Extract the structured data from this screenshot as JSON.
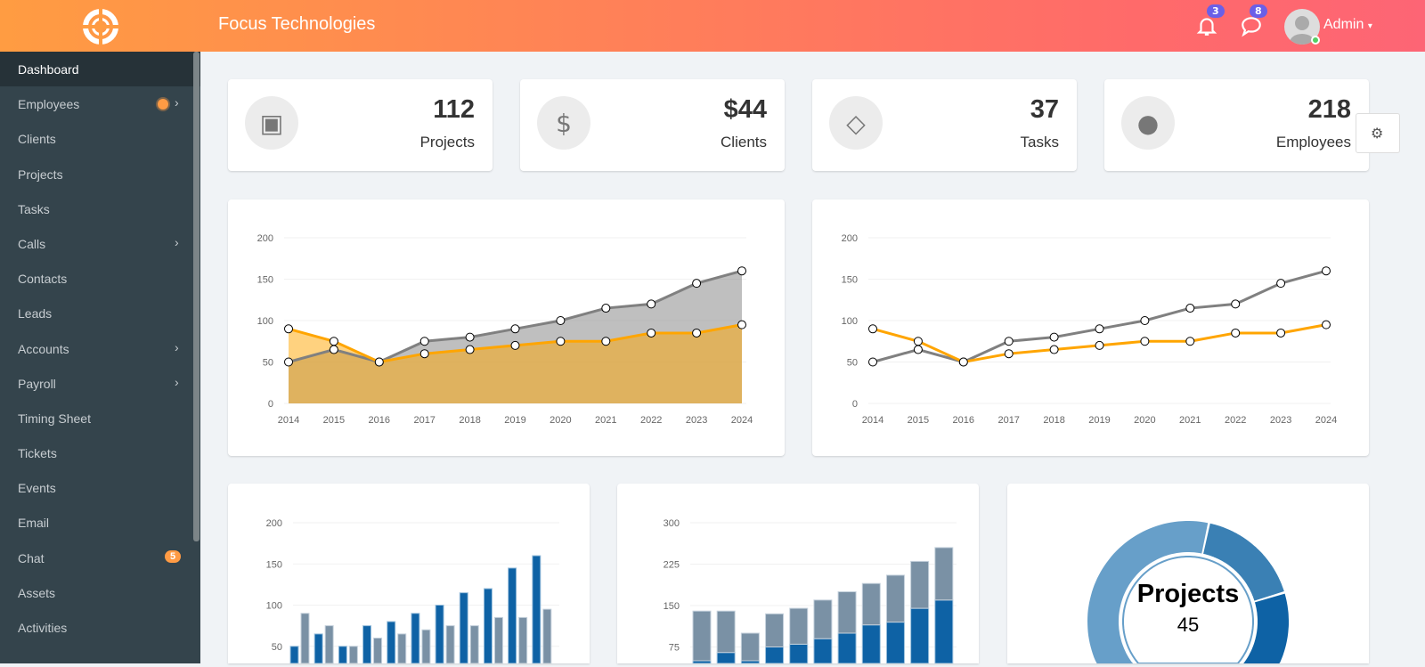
{
  "header": {
    "title": "Focus Technologies",
    "notifications_count": "3",
    "messages_count": "8",
    "user": "Admin"
  },
  "sidebar": {
    "items": [
      {
        "label": "Dashboard",
        "active": true
      },
      {
        "label": "Employees",
        "dot": true,
        "chevron": true
      },
      {
        "label": "Clients"
      },
      {
        "label": "Projects"
      },
      {
        "label": "Tasks"
      },
      {
        "label": "Calls",
        "chevron": true
      },
      {
        "label": "Contacts"
      },
      {
        "label": "Leads"
      },
      {
        "label": "Accounts",
        "chevron": true
      },
      {
        "label": "Payroll",
        "chevron": true
      },
      {
        "label": "Timing Sheet"
      },
      {
        "label": "Tickets"
      },
      {
        "label": "Events"
      },
      {
        "label": "Email"
      },
      {
        "label": "Chat",
        "badge": "5"
      },
      {
        "label": "Assets"
      },
      {
        "label": "Activities"
      }
    ]
  },
  "stats": [
    {
      "value": "112",
      "label": "Projects",
      "icon": "cubes-icon"
    },
    {
      "value": "$44",
      "label": "Clients",
      "icon": "dollar-icon"
    },
    {
      "value": "37",
      "label": "Tasks",
      "icon": "diamond-icon"
    },
    {
      "value": "218",
      "label": "Employees",
      "icon": "user-icon"
    }
  ],
  "colors": {
    "series_a": "#808080",
    "series_b": "#ffa500",
    "bar_a": "#0e62a5",
    "bar_b": "#7a91a5",
    "donut": [
      "#3a80b4",
      "#0e62a5",
      "#679fc9"
    ]
  },
  "chart_data": [
    {
      "type": "area",
      "categories": [
        "2014",
        "2015",
        "2016",
        "2017",
        "2018",
        "2019",
        "2020",
        "2021",
        "2022",
        "2023",
        "2024"
      ],
      "ylim": [
        0,
        200
      ],
      "yticks": [
        0,
        50,
        100,
        150,
        200
      ],
      "series": [
        {
          "values": [
            50,
            65,
            50,
            75,
            80,
            90,
            100,
            115,
            120,
            145,
            160
          ]
        },
        {
          "values": [
            90,
            75,
            50,
            60,
            65,
            70,
            75,
            75,
            85,
            85,
            95
          ]
        }
      ],
      "grid": true
    },
    {
      "type": "line",
      "categories": [
        "2014",
        "2015",
        "2016",
        "2017",
        "2018",
        "2019",
        "2020",
        "2021",
        "2022",
        "2023",
        "2024"
      ],
      "ylim": [
        0,
        200
      ],
      "yticks": [
        0,
        50,
        100,
        150,
        200
      ],
      "series": [
        {
          "values": [
            50,
            65,
            50,
            75,
            80,
            90,
            100,
            115,
            120,
            145,
            160
          ]
        },
        {
          "values": [
            90,
            75,
            50,
            60,
            65,
            70,
            75,
            75,
            85,
            85,
            95
          ]
        }
      ],
      "grid": true
    },
    {
      "type": "bar",
      "ylim": [
        0,
        200
      ],
      "yticks": [
        50,
        100,
        150,
        200
      ],
      "series": [
        {
          "values": [
            50,
            65,
            50,
            75,
            80,
            90,
            100,
            115,
            120,
            145,
            160
          ]
        },
        {
          "values": [
            90,
            75,
            50,
            60,
            65,
            70,
            75,
            75,
            85,
            85,
            95
          ]
        }
      ],
      "grid": true
    },
    {
      "type": "stacked-bar",
      "ylim": [
        0,
        300
      ],
      "yticks": [
        75,
        150,
        225,
        300
      ],
      "series": [
        {
          "values": [
            50,
            65,
            50,
            75,
            80,
            90,
            100,
            115,
            120,
            145,
            160
          ]
        },
        {
          "values": [
            90,
            75,
            50,
            60,
            65,
            70,
            75,
            75,
            85,
            85,
            95
          ]
        }
      ],
      "grid": true
    },
    {
      "type": "donut",
      "title": "Projects",
      "value": "45",
      "shares": [
        17,
        30,
        53
      ]
    }
  ]
}
